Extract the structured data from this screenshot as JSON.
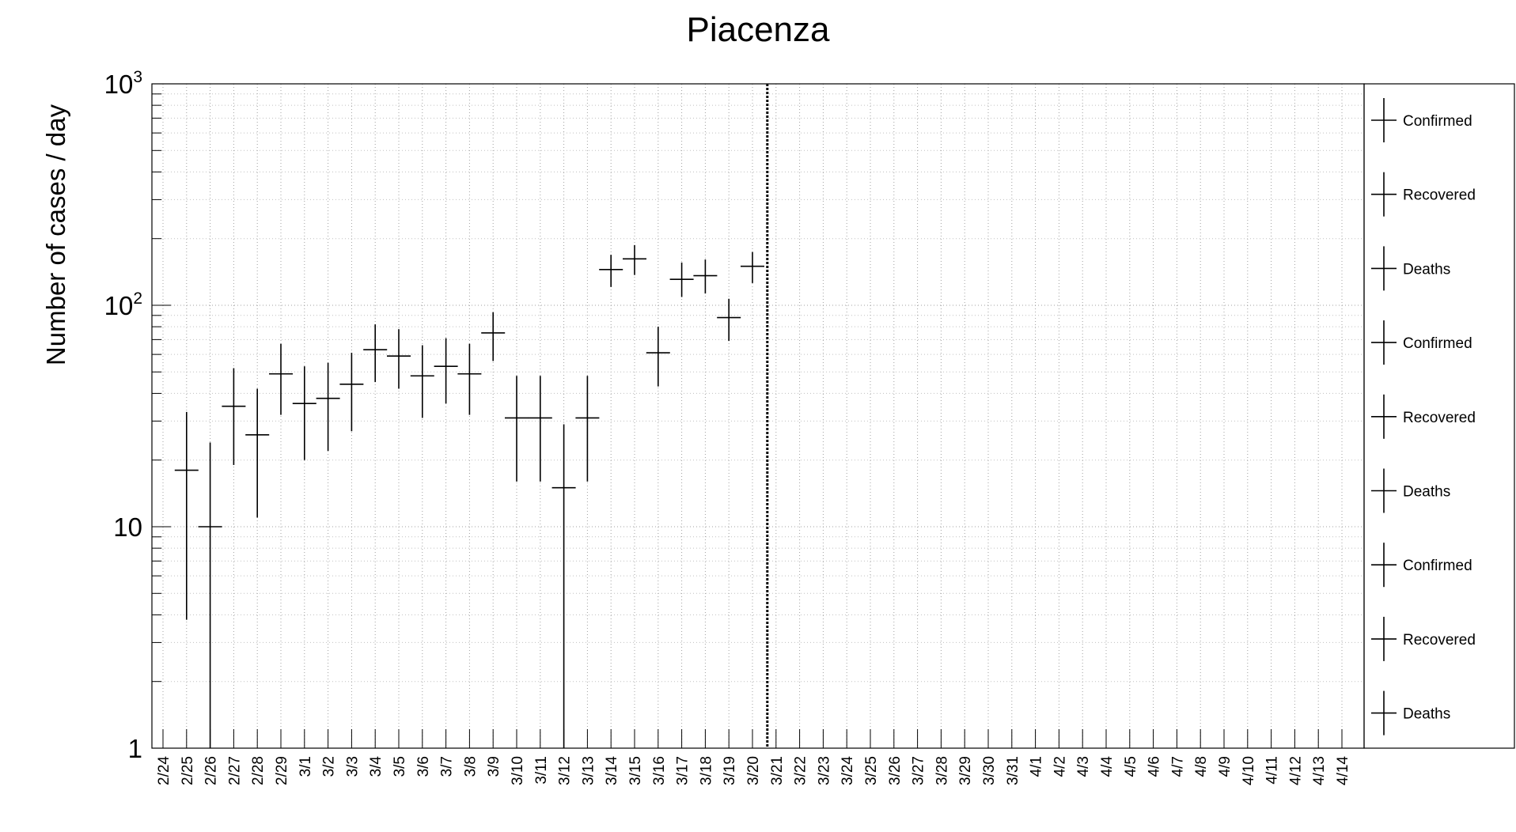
{
  "chart_data": {
    "type": "scatter",
    "title": "Piacenza",
    "ylabel": "Number of cases / day",
    "xlabel": "",
    "yscale": "log",
    "ylim": [
      1,
      1000
    ],
    "y_ticks": [
      {
        "value": 1,
        "label": "1"
      },
      {
        "value": 10,
        "label": "10"
      },
      {
        "value": 100,
        "label": "10^2"
      },
      {
        "value": 1000,
        "label": "10^3"
      }
    ],
    "grid": true,
    "categories": [
      "2/24",
      "2/25",
      "2/26",
      "2/27",
      "2/28",
      "2/29",
      "3/1",
      "3/2",
      "3/3",
      "3/4",
      "3/5",
      "3/6",
      "3/7",
      "3/8",
      "3/9",
      "3/10",
      "3/11",
      "3/12",
      "3/13",
      "3/14",
      "3/15",
      "3/16",
      "3/17",
      "3/18",
      "3/19",
      "3/20",
      "3/21",
      "3/22",
      "3/23",
      "3/24",
      "3/25",
      "3/26",
      "3/27",
      "3/28",
      "3/29",
      "3/30",
      "3/31",
      "4/1",
      "4/2",
      "4/3",
      "4/4",
      "4/5",
      "4/6",
      "4/7",
      "4/8",
      "4/9",
      "4/10",
      "4/11",
      "4/12",
      "4/13",
      "4/14"
    ],
    "vertical_marker": {
      "date": "3/21",
      "style": "dotted"
    },
    "series": [
      {
        "name": "Confirmed",
        "points": [
          {
            "x": "2/25",
            "y": 18,
            "ylow": 3.8,
            "yhigh": 33
          },
          {
            "x": "2/26",
            "y": 10,
            "ylow": 1,
            "yhigh": 24
          },
          {
            "x": "2/27",
            "y": 35,
            "ylow": 19,
            "yhigh": 52
          },
          {
            "x": "2/28",
            "y": 26,
            "ylow": 11,
            "yhigh": 42
          },
          {
            "x": "2/29",
            "y": 49,
            "ylow": 32,
            "yhigh": 67
          },
          {
            "x": "3/1",
            "y": 36,
            "ylow": 20,
            "yhigh": 53
          },
          {
            "x": "3/2",
            "y": 38,
            "ylow": 22,
            "yhigh": 55
          },
          {
            "x": "3/3",
            "y": 44,
            "ylow": 27,
            "yhigh": 61
          },
          {
            "x": "3/4",
            "y": 63,
            "ylow": 45,
            "yhigh": 82
          },
          {
            "x": "3/5",
            "y": 59,
            "ylow": 42,
            "yhigh": 78
          },
          {
            "x": "3/6",
            "y": 48,
            "ylow": 31,
            "yhigh": 66
          },
          {
            "x": "3/7",
            "y": 53,
            "ylow": 36,
            "yhigh": 71
          },
          {
            "x": "3/8",
            "y": 49,
            "ylow": 32,
            "yhigh": 67
          },
          {
            "x": "3/9",
            "y": 75,
            "ylow": 56,
            "yhigh": 93
          },
          {
            "x": "3/10",
            "y": 31,
            "ylow": 16,
            "yhigh": 48
          },
          {
            "x": "3/11",
            "y": 31,
            "ylow": 16,
            "yhigh": 48
          },
          {
            "x": "3/12",
            "y": 15,
            "ylow": 1,
            "yhigh": 29
          },
          {
            "x": "3/13",
            "y": 31,
            "ylow": 16,
            "yhigh": 48
          },
          {
            "x": "3/14",
            "y": 145,
            "ylow": 121,
            "yhigh": 169
          },
          {
            "x": "3/15",
            "y": 162,
            "ylow": 137,
            "yhigh": 187
          },
          {
            "x": "3/16",
            "y": 61,
            "ylow": 43,
            "yhigh": 80
          },
          {
            "x": "3/17",
            "y": 131,
            "ylow": 109,
            "yhigh": 156
          },
          {
            "x": "3/18",
            "y": 136,
            "ylow": 113,
            "yhigh": 161
          },
          {
            "x": "3/19",
            "y": 88,
            "ylow": 69,
            "yhigh": 107
          },
          {
            "x": "3/20",
            "y": 150,
            "ylow": 126,
            "yhigh": 174
          }
        ]
      },
      {
        "name": "Recovered",
        "points": []
      },
      {
        "name": "Deaths",
        "points": []
      }
    ],
    "legend": {
      "placement": "right",
      "entries": [
        "Confirmed",
        "Recovered",
        "Deaths",
        "Confirmed",
        "Recovered",
        "Deaths",
        "Confirmed",
        "Recovered",
        "Deaths"
      ]
    }
  }
}
